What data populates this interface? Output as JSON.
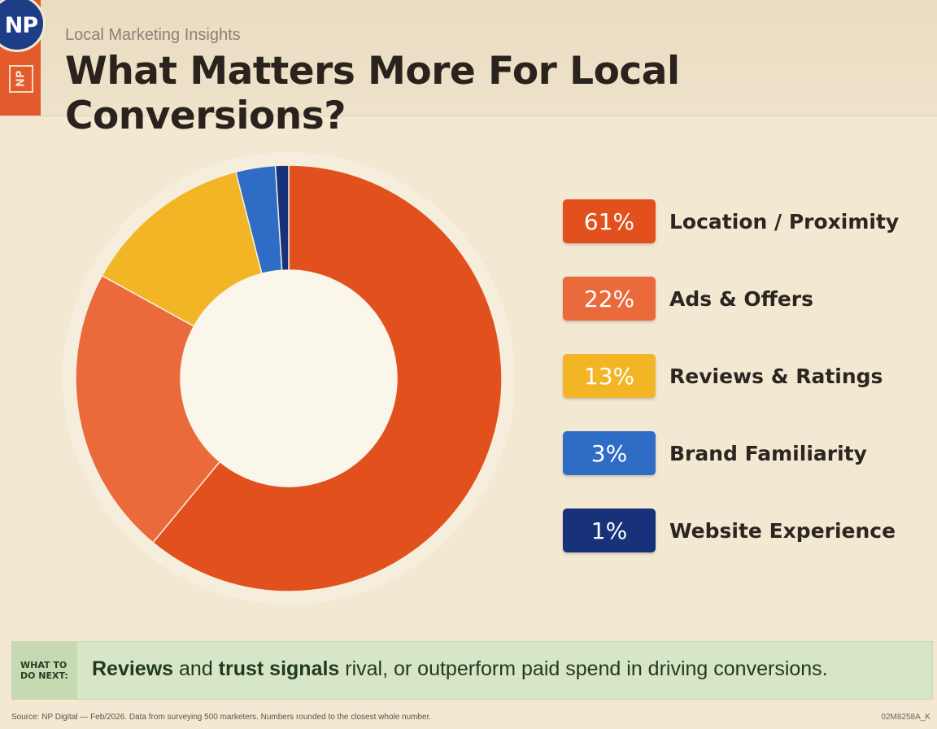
{
  "header": {
    "logo_top": "NP",
    "logo_vertical": "NP",
    "subtitle": "Local Marketing Insights",
    "title": "What Matters More For Local Conversions?"
  },
  "chart_data": {
    "type": "pie",
    "title": "What Matters More For Local Conversions?",
    "categories": [
      "Location / Proximity",
      "Ads & Offers",
      "Reviews & Ratings",
      "Brand Familiarity",
      "Website Experience"
    ],
    "values": [
      61,
      22,
      13,
      3,
      1
    ],
    "labels": [
      "61%",
      "22%",
      "13%",
      "3%",
      "1%"
    ],
    "colors": [
      "#e2501e",
      "#ea6a3c",
      "#f1b526",
      "#2f6cc6",
      "#17327a"
    ],
    "donut": true,
    "legend": "right"
  },
  "callout": {
    "tag_line1": "WHAT TO",
    "tag_line2": "DO NEXT:",
    "bold1": "Reviews",
    "text1": " and ",
    "bold2": "trust signals",
    "text2": " rival, or outperform paid spend in driving conversions."
  },
  "footer": {
    "source": "Source: NP Digital — Feb/2026. Data from surveying 500 marketers. Numbers rounded to the closest whole number.",
    "code": "02M8258A_K"
  }
}
